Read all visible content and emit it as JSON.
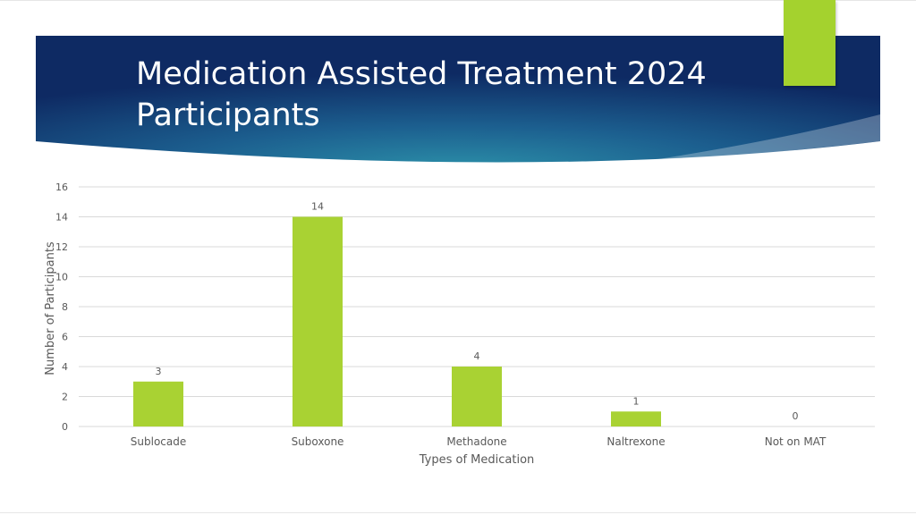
{
  "slide": {
    "title_line1": "Medication Assisted Treatment 2024",
    "title_line2": "Participants"
  },
  "colors": {
    "banner_dark": "#0e2a63",
    "banner_mid": "#1c5f8f",
    "banner_glow": "#2b8ea8",
    "accent": "#a4d22e",
    "bar": "#a9d233",
    "grid": "#d9d9d9",
    "axis_text": "#595959"
  },
  "chart_data": {
    "type": "bar",
    "categories": [
      "Sublocade",
      "Suboxone",
      "Methadone",
      "Naltrexone",
      "Not on MAT"
    ],
    "values": [
      3,
      14,
      4,
      1,
      0
    ],
    "data_labels": [
      "3",
      "14",
      "4",
      "1",
      "0"
    ],
    "yticks": [
      "0",
      "2",
      "4",
      "6",
      "8",
      "10",
      "12",
      "14",
      "16"
    ],
    "ylim": [
      0,
      16
    ],
    "xlabel": "Types of Medication",
    "ylabel": "Number of Participants",
    "grid": true,
    "legend": false
  }
}
